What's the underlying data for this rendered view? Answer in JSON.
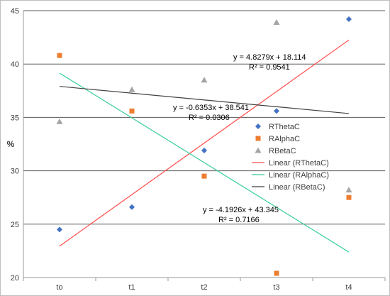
{
  "chart_data": {
    "type": "scatter",
    "categories": [
      "to",
      "t1",
      "t2",
      "t3",
      "t4"
    ],
    "x": [
      1,
      2,
      3,
      4,
      5
    ],
    "ylabel": "%",
    "xlabel": "",
    "ylim": [
      20,
      45
    ],
    "yticks": [
      20,
      25,
      30,
      35,
      40,
      45
    ],
    "grid": true,
    "legend_position": "right",
    "series": [
      {
        "name": "RThetaC",
        "marker": "diamond",
        "color": "#4472c4",
        "values": [
          24.5,
          26.6,
          31.9,
          35.6,
          44.2
        ]
      },
      {
        "name": "RAlphaC",
        "marker": "square",
        "color": "#ed7d31",
        "values": [
          40.8,
          35.6,
          29.5,
          20.4,
          27.5
        ]
      },
      {
        "name": "RBetaC",
        "marker": "triangle",
        "color": "#a5a5a5",
        "values": [
          34.6,
          37.6,
          38.5,
          43.9,
          28.2
        ]
      }
    ],
    "trendlines": [
      {
        "name": "Linear (RThetaC)",
        "color": "#ff4b4b",
        "slope": 4.8279,
        "intercept": 18.114,
        "equation": "y = 4.8279x + 18.114",
        "r2": "R² = 0.9541"
      },
      {
        "name": "Linear (RAlphaC)",
        "color": "#33cc99",
        "slope": -4.1926,
        "intercept": 43.345,
        "equation": "y = -4.1926x + 43.345",
        "r2": "R² = 0.7166"
      },
      {
        "name": "Linear (RBetaC)",
        "color": "#404040",
        "slope": -0.6353,
        "intercept": 38.541,
        "equation": "y = -0.6353x + 38.541",
        "r2": "R² = 0.0306"
      }
    ]
  }
}
